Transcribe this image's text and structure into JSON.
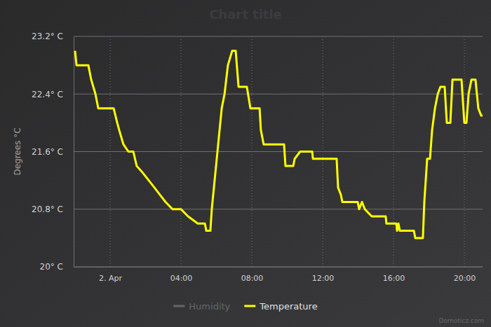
{
  "chart_data": {
    "type": "line",
    "title": "Chart title",
    "y_label": "Degrees °C",
    "annotations": [
      "Domoticz.com"
    ],
    "x": [
      -1.98,
      -1.9,
      -1.23,
      -1.07,
      -0.95,
      -0.83,
      -0.67,
      0.2,
      0.4,
      0.51,
      0.75,
      1.03,
      1.31,
      1.5,
      1.86,
      2.18,
      2.5,
      2.81,
      3.13,
      3.52,
      4.0,
      4.4,
      4.95,
      5.35,
      5.43,
      5.66,
      5.74,
      5.98,
      6.3,
      6.46,
      6.65,
      6.89,
      7.09,
      7.25,
      7.72,
      7.92,
      8.44,
      8.51,
      8.67,
      9.82,
      9.9,
      10.34,
      10.42,
      10.73,
      11.41,
      11.45,
      12.79,
      12.87,
      13.03,
      13.11,
      13.98,
      14.06,
      14.22,
      14.38,
      14.77,
      15.56,
      15.6,
      16.16,
      16.2,
      16.28,
      16.36,
      17.15,
      17.23,
      17.66,
      17.74,
      17.9,
      18.06,
      18.18,
      18.34,
      18.5,
      18.65,
      18.89,
      19.01,
      19.21,
      19.33,
      19.84,
      20.0,
      20.12,
      20.24,
      20.4,
      20.63,
      20.79,
      20.95,
      21.03
    ],
    "series": [
      {
        "name": "Humidity",
        "color": "#666666",
        "values": [
          null,
          null,
          null,
          null,
          null,
          null,
          null,
          null,
          null,
          null,
          null,
          null,
          null,
          null,
          null,
          null,
          null,
          null,
          null,
          null,
          null,
          null,
          null,
          null,
          null,
          null,
          null,
          null,
          null,
          null,
          null,
          null,
          null,
          null,
          null,
          null,
          null,
          null,
          null,
          null,
          null,
          null,
          null,
          null,
          null,
          null,
          null,
          null,
          null,
          null,
          null,
          null,
          null,
          null,
          null,
          null,
          null,
          null,
          null,
          null,
          null,
          null,
          null,
          null,
          null,
          null,
          null,
          null,
          null,
          null,
          null,
          null,
          null,
          null,
          null,
          null,
          null,
          null,
          null,
          null,
          null,
          null,
          null,
          null
        ]
      },
      {
        "name": "Temperature",
        "color": "#ffff00",
        "line_style": "solid",
        "values": [
          23.0,
          22.8,
          22.8,
          22.6,
          22.5,
          22.4,
          22.2,
          22.2,
          22.0,
          21.9,
          21.7,
          21.6,
          21.6,
          21.4,
          21.3,
          21.2,
          21.1,
          21.0,
          20.9,
          20.8,
          20.8,
          20.7,
          20.6,
          20.6,
          20.5,
          20.5,
          20.8,
          21.4,
          22.2,
          22.4,
          22.8,
          23.0,
          23.0,
          22.5,
          22.5,
          22.2,
          22.2,
          21.9,
          21.7,
          21.7,
          21.4,
          21.4,
          21.5,
          21.6,
          21.6,
          21.5,
          21.5,
          21.1,
          21.0,
          20.9,
          20.9,
          20.8,
          20.9,
          20.8,
          20.7,
          20.7,
          20.6,
          20.6,
          20.5,
          20.6,
          20.5,
          20.5,
          20.4,
          20.4,
          20.9,
          21.5,
          21.5,
          21.9,
          22.2,
          22.4,
          22.5,
          22.5,
          22.0,
          22.0,
          22.6,
          22.6,
          22.0,
          22.0,
          22.4,
          22.6,
          22.6,
          22.2,
          22.1,
          22.1
        ]
      }
    ],
    "xlim": [
      -2.06,
      21.03
    ],
    "xticks": [
      {
        "value": 0,
        "label": "2. Apr"
      },
      {
        "value": 4,
        "label": "04:00"
      },
      {
        "value": 8,
        "label": "08:00"
      },
      {
        "value": 12,
        "label": "12:00"
      },
      {
        "value": 16,
        "label": "16:00"
      },
      {
        "value": 20,
        "label": "20:00"
      }
    ],
    "ylim": [
      20,
      23.2
    ],
    "yticks": [
      {
        "value": 20,
        "label": "20° C"
      },
      {
        "value": 20.8,
        "label": "20.8° C"
      },
      {
        "value": 21.6,
        "label": "21.6° C"
      },
      {
        "value": 22.4,
        "label": "22.4° C"
      },
      {
        "value": 23.2,
        "label": "23.2° C"
      }
    ],
    "grid": true,
    "legend": "bottom"
  }
}
